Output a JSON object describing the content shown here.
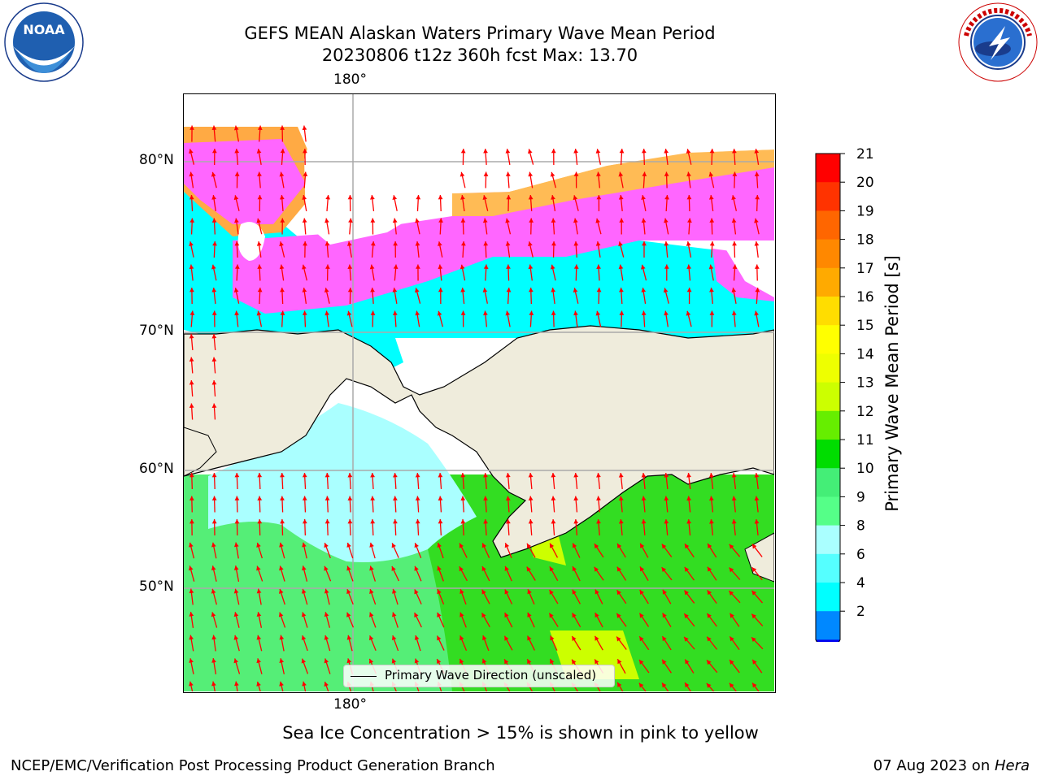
{
  "title": {
    "line1": "GEFS MEAN Alaskan Waters Primary Wave Mean Period",
    "line2": "20230806 t12z 360h fcst   Max: 13.70"
  },
  "logos": {
    "left": "NOAA",
    "left_ring_top": "NATIONAL OCEANIC AND ATMOSPHERIC ADMINISTRATION",
    "left_ring_bottom": "U.S. DEPARTMENT OF COMMERCE",
    "right_ring": "NATIONAL WEATHER SERVICE"
  },
  "map": {
    "lon_label_top": "180°",
    "lon_label_bottom": "180°",
    "lat_labels": [
      "80°N",
      "70°N",
      "60°N",
      "50°N"
    ],
    "legend": "Primary Wave Direction (unscaled)",
    "colors": {
      "land": "#efecdc",
      "open_water_period": "#ffffff",
      "arrows": "#ff0000"
    }
  },
  "colorbar": {
    "label": "Primary Wave Mean Period [s]",
    "ticks": [
      "21",
      "20",
      "19",
      "18",
      "17",
      "16",
      "15",
      "14",
      "13",
      "12",
      "11",
      "10",
      "9",
      "8",
      "6",
      "4",
      "2"
    ],
    "colors": [
      "#ff0000",
      "#ff3300",
      "#ff6600",
      "#ff8800",
      "#ffaa00",
      "#ffdd00",
      "#ffff00",
      "#eeff00",
      "#ccff00",
      "#66ee00",
      "#00dd00",
      "#44ee77",
      "#55ff88",
      "#aaffff",
      "#55ffff",
      "#00ffff",
      "#0088ff"
    ],
    "under_color": "#0000ee",
    "extend": "min"
  },
  "caption": "Sea Ice Concentration > 15% is shown in pink to yellow",
  "footer": {
    "left": "NCEP/EMC/Verification Post Processing Product Generation Branch",
    "date": "07 Aug 2023 on ",
    "machine": "Hera"
  }
}
